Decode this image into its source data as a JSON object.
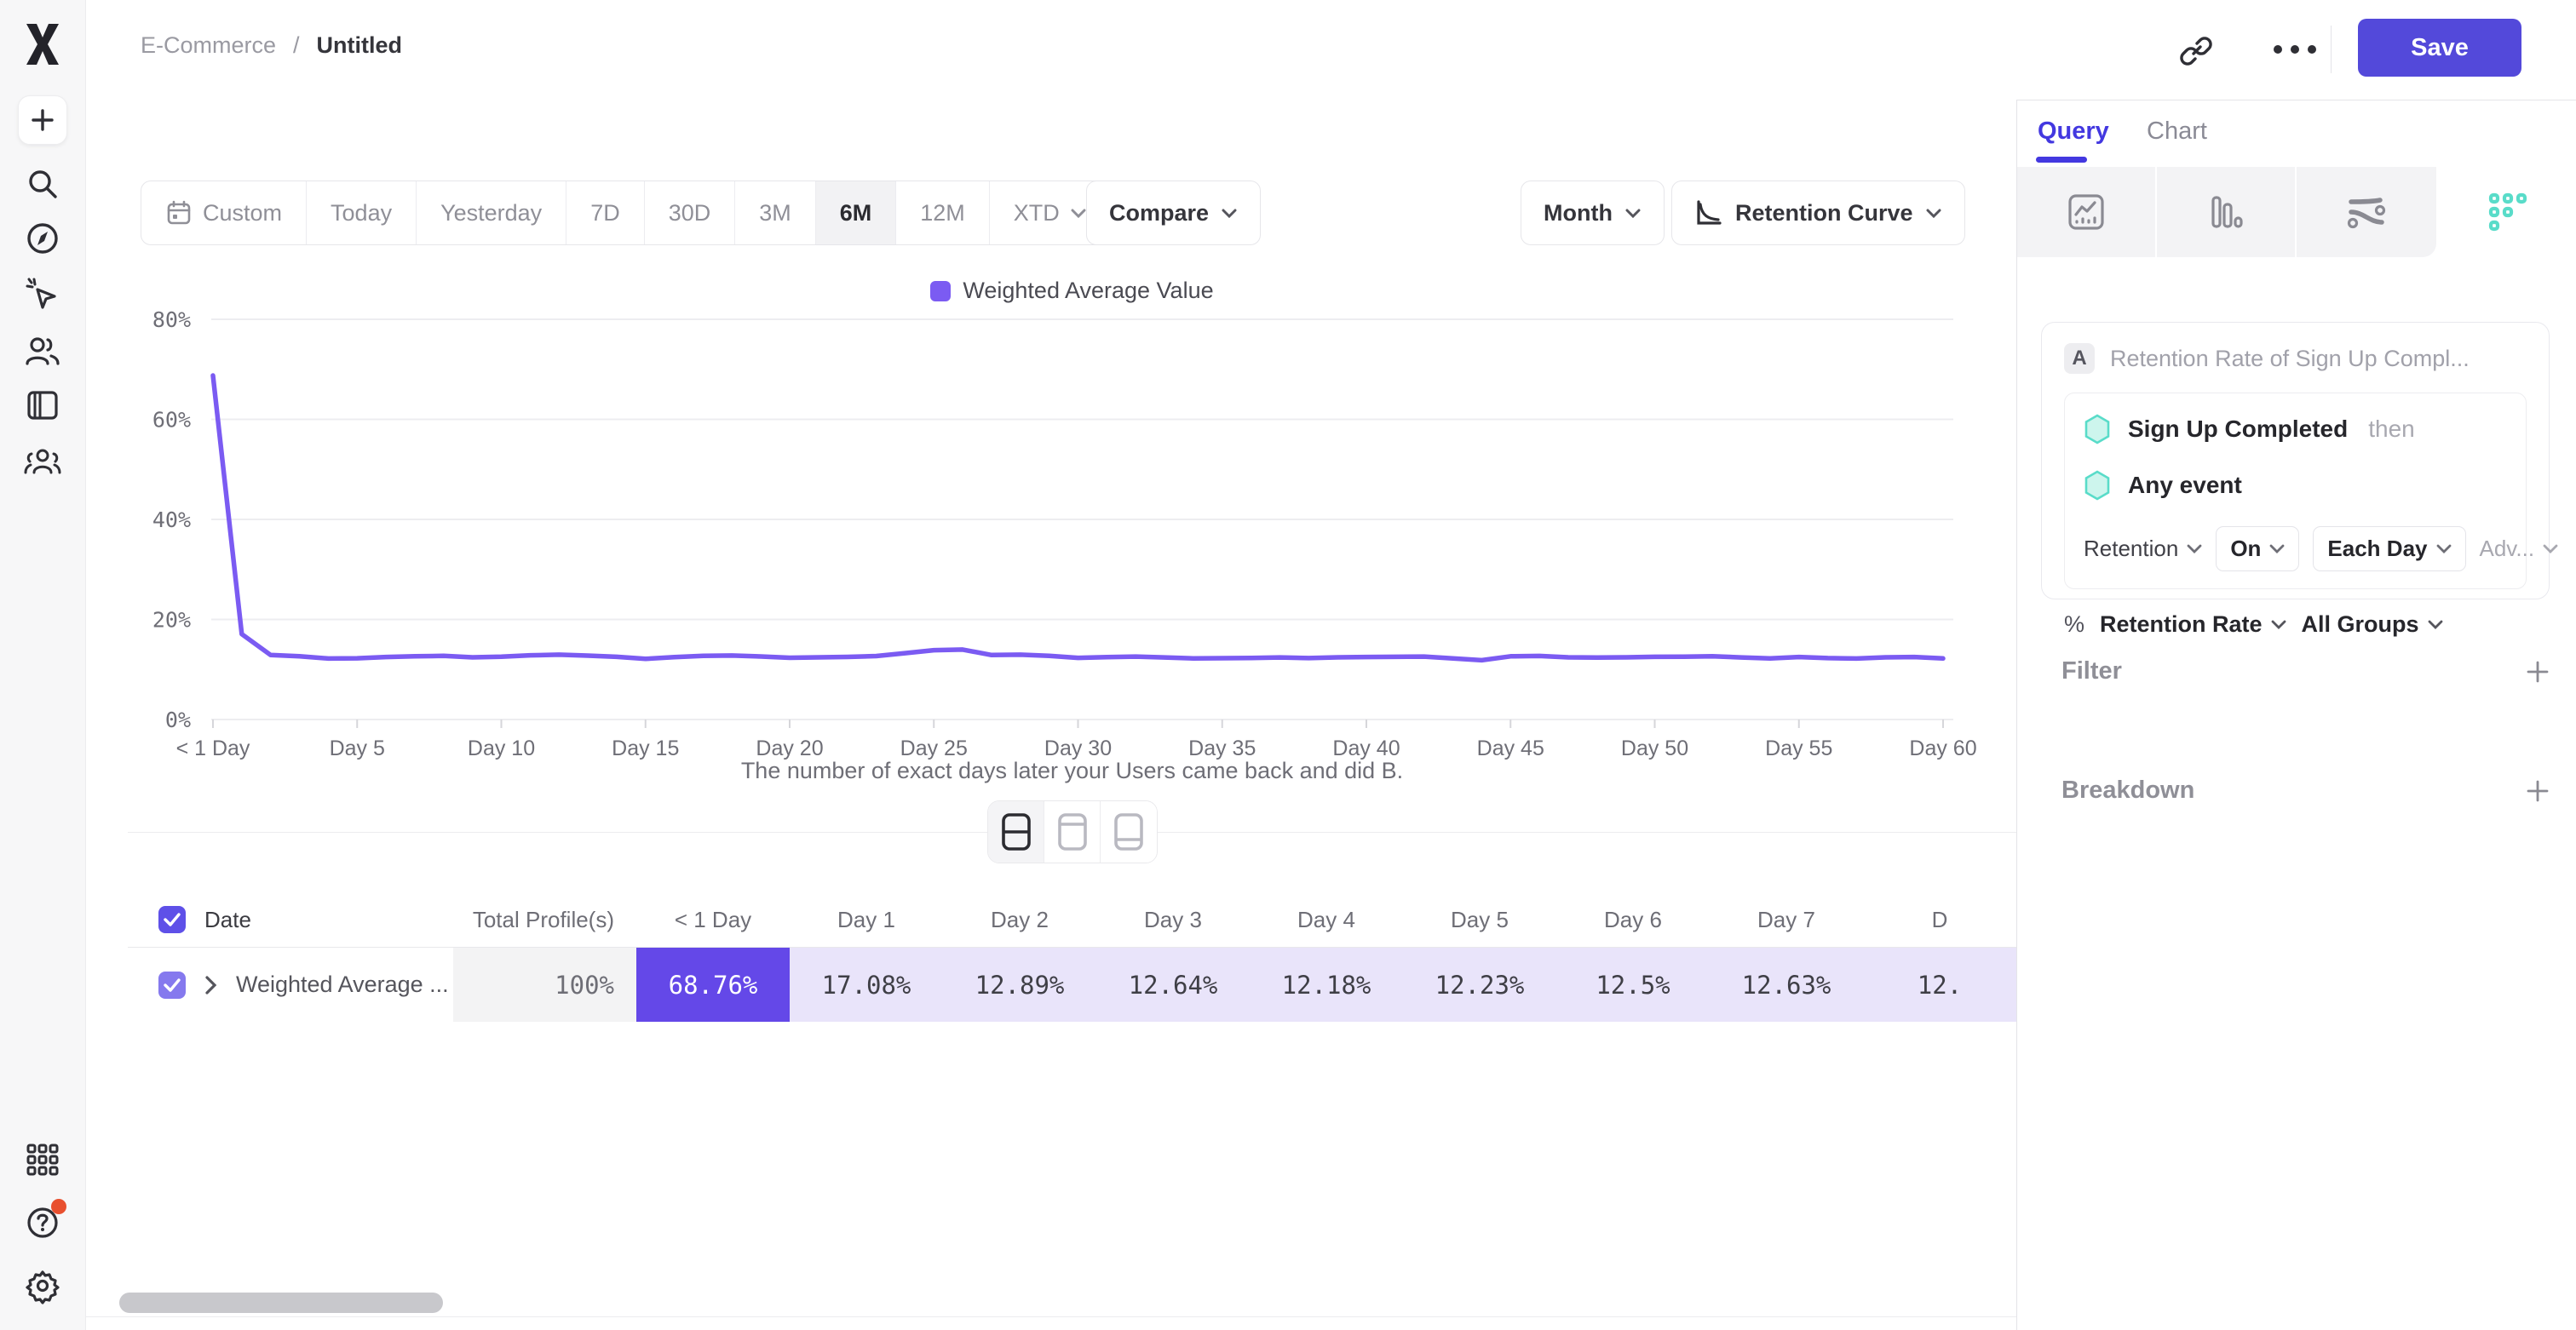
{
  "header": {
    "breadcrumb": {
      "project": "E-Commerce",
      "separator": "/",
      "title": "Untitled"
    },
    "save_label": "Save",
    "icons": [
      "mixpanel-logo",
      "link-icon",
      "ellipsis-icon"
    ]
  },
  "sidebar": {
    "icons": [
      "plus-icon",
      "search-icon",
      "compass-icon",
      "cursor-spark-icon",
      "users-icon",
      "board-icon",
      "group-icon",
      "apps-grid-icon",
      "help-icon",
      "gear-icon"
    ],
    "help_badge_color": "#e8502f"
  },
  "toolbar": {
    "ranges": [
      "Custom",
      "Today",
      "Yesterday",
      "7D",
      "30D",
      "3M",
      "6M",
      "12M",
      "XTD"
    ],
    "selected_range": "6M",
    "compare_label": "Compare",
    "granularity_label": "Month",
    "chart_type_label": "Retention Curve"
  },
  "legend": {
    "label": "Weighted Average Value",
    "color": "#7b5bf2"
  },
  "caption": "The number of exact days later your Users came back and did B.",
  "chart_data": {
    "type": "line",
    "title": "",
    "xlabel": "The number of exact days later your Users came back and did B.",
    "ylabel": "Retention Rate",
    "ylim": [
      0,
      80
    ],
    "grid": "horizontal",
    "legend_position": "top",
    "yticks": [
      {
        "label": "0%",
        "value": 0
      },
      {
        "label": "20%",
        "value": 20
      },
      {
        "label": "40%",
        "value": 40
      },
      {
        "label": "60%",
        "value": 60
      },
      {
        "label": "80%",
        "value": 80
      }
    ],
    "x_tick_labels": [
      "< 1 Day",
      "Day 5",
      "Day 10",
      "Day 15",
      "Day 20",
      "Day 25",
      "Day 30",
      "Day 35",
      "Day 40",
      "Day 45",
      "Day 50",
      "Day 55",
      "Day 60"
    ],
    "x_tick_interval_days": 5,
    "series": [
      {
        "name": "Weighted Average Value",
        "color": "#7b5bf2",
        "values": [
          68.76,
          17.08,
          12.89,
          12.64,
          12.18,
          12.23,
          12.5,
          12.63,
          12.71,
          12.42,
          12.55,
          12.84,
          12.96,
          12.77,
          12.53,
          12.12,
          12.48,
          12.71,
          12.78,
          12.6,
          12.34,
          12.42,
          12.51,
          12.68,
          13.26,
          13.85,
          13.98,
          12.88,
          12.95,
          12.73,
          12.33,
          12.46,
          12.58,
          12.4,
          12.22,
          12.25,
          12.3,
          12.4,
          12.28,
          12.42,
          12.5,
          12.52,
          12.58,
          12.21,
          11.85,
          12.63,
          12.7,
          12.42,
          12.38,
          12.42,
          12.52,
          12.57,
          12.63,
          12.4,
          12.22,
          12.5,
          12.28,
          12.18,
          12.42,
          12.49,
          12.21
        ]
      }
    ]
  },
  "table": {
    "date_header": "Date",
    "total_header": "Total Profile(s)",
    "row_label": "Weighted Average ...",
    "total_value": "100%",
    "day_columns": [
      {
        "label": "< 1 Day",
        "value": "68.76%",
        "style": "solid"
      },
      {
        "label": "Day 1",
        "value": "17.08%",
        "style": "light"
      },
      {
        "label": "Day 2",
        "value": "12.89%",
        "style": "light"
      },
      {
        "label": "Day 3",
        "value": "12.64%",
        "style": "light"
      },
      {
        "label": "Day 4",
        "value": "12.18%",
        "style": "light"
      },
      {
        "label": "Day 5",
        "value": "12.23%",
        "style": "light"
      },
      {
        "label": "Day 6",
        "value": "12.5%",
        "style": "light"
      },
      {
        "label": "Day 7",
        "value": "12.63%",
        "style": "light"
      },
      {
        "label": "D",
        "value": "12.",
        "style": "light"
      }
    ]
  },
  "query_panel": {
    "tabs": [
      {
        "label": "Query",
        "active": true
      },
      {
        "label": "Chart",
        "active": false
      }
    ],
    "report_icons": [
      "insights-icon",
      "funnels-icon",
      "flows-icon",
      "retention-dots-icon"
    ],
    "selected_report": "retention-dots-icon",
    "card": {
      "badge": "A",
      "title": "Retention Rate of Sign Up Compl...",
      "first_event": "Sign Up Completed",
      "then_label": "then",
      "second_event": "Any event",
      "retention_label": "Retention",
      "on_label": "On",
      "each_label": "Each Day",
      "advanced_label": "Adv...",
      "percent_sign": "%",
      "measure_label": "Retention Rate",
      "groups_label": "All Groups"
    },
    "filter_label": "Filter",
    "breakdown_label": "Breakdown",
    "accent_teal": "#59dcc9"
  },
  "colors": {
    "accent_purple": "#5349da",
    "line_purple": "#7b5bf2",
    "cell_solid": "#6448e8",
    "cell_light": "#e9e4fa",
    "tab_active": "#4338e0"
  }
}
